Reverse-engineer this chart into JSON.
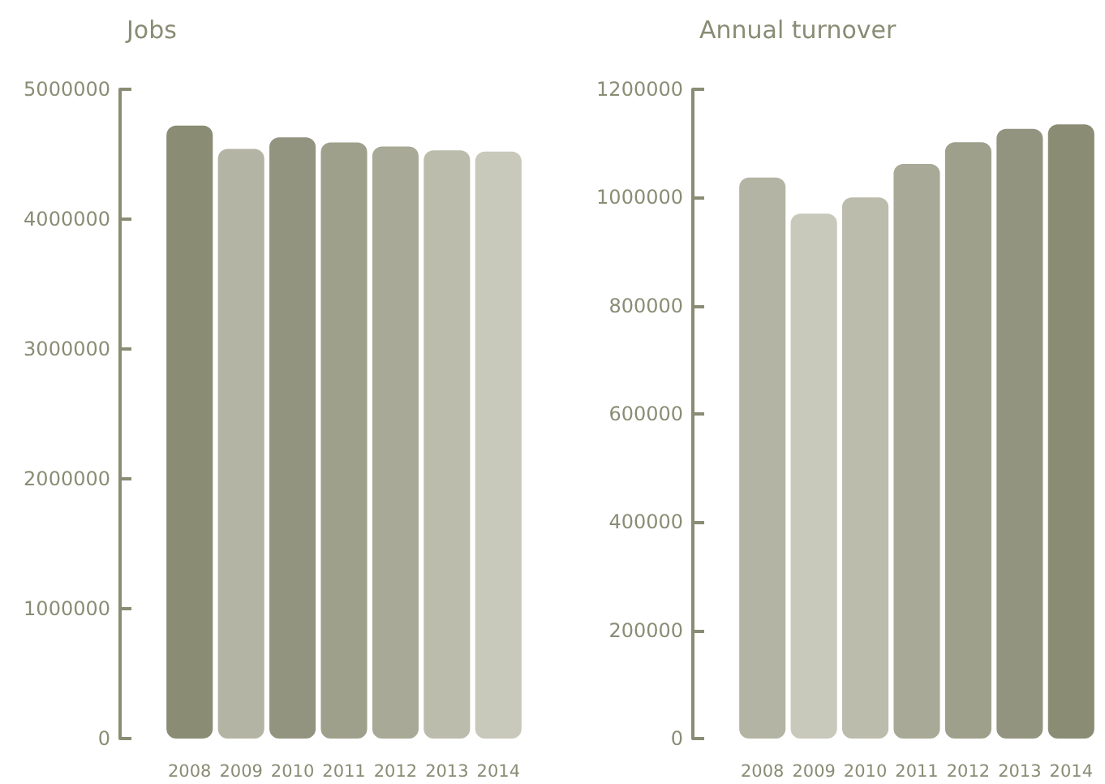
{
  "chart_data": [
    {
      "type": "bar",
      "title": "Jobs",
      "categories": [
        "2008",
        "2009",
        "2010",
        "2011",
        "2012",
        "2013",
        "2014"
      ],
      "values": [
        4720000,
        4540000,
        4630000,
        4590000,
        4560000,
        4530000,
        4520000
      ],
      "colors": [
        "#8a8c74",
        "#b4b4a4",
        "#939480",
        "#9fa08b",
        "#a8a996",
        "#bcbcac",
        "#c8c8bb"
      ],
      "ylim": [
        0,
        5000000
      ],
      "yticks": [
        0,
        1000000,
        2000000,
        3000000,
        4000000,
        5000000
      ]
    },
    {
      "type": "bar",
      "title": "Annual turnover",
      "categories": [
        "2008",
        "2009",
        "2010",
        "2011",
        "2012",
        "2013",
        "2014"
      ],
      "values": [
        1037000,
        970000,
        1000000,
        1062000,
        1102000,
        1127000,
        1135000
      ],
      "colors": [
        "#b4b4a4",
        "#c8c8bb",
        "#bcbcac",
        "#a8a996",
        "#9fa08b",
        "#939480",
        "#8a8c74"
      ],
      "ylim": [
        0,
        1200000
      ],
      "yticks": [
        0,
        200000,
        400000,
        600000,
        800000,
        1000000,
        1200000
      ]
    }
  ]
}
